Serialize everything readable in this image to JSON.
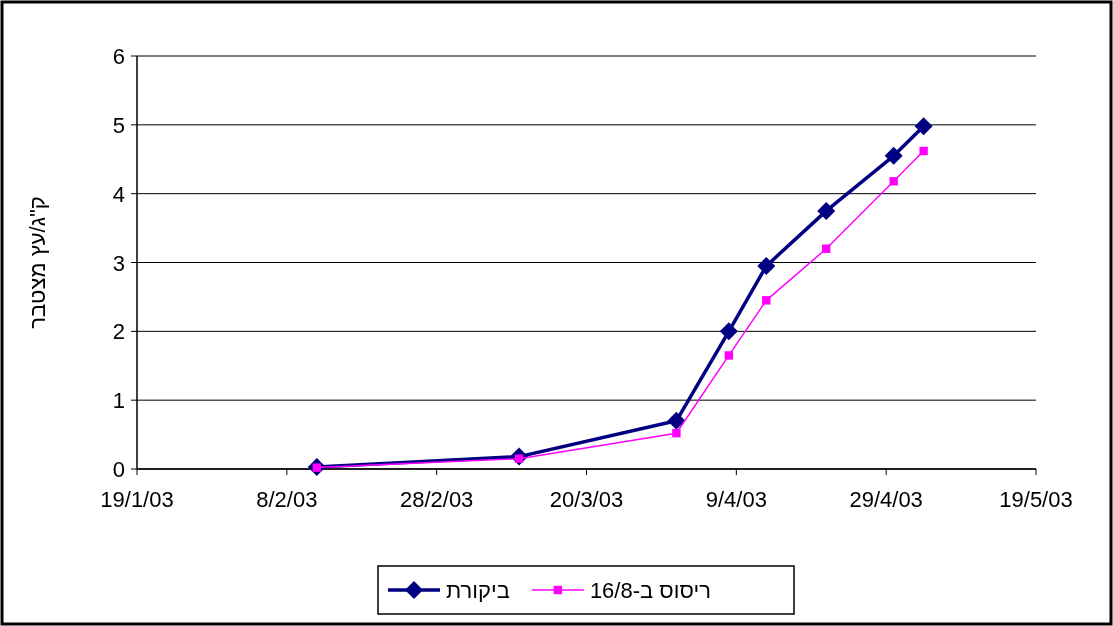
{
  "chart_data": {
    "type": "line",
    "ylabel": "ק\"ג/עץ מצטבר",
    "x": [
      "2003-02-12",
      "2003-03-11",
      "2003-04-01",
      "2003-04-08",
      "2003-04-13",
      "2003-04-21",
      "2003-04-30",
      "2003-05-04"
    ],
    "series": [
      {
        "name": "ביקורת",
        "color": "#000080",
        "marker": "diamond",
        "values": [
          0.03,
          0.18,
          0.7,
          2.0,
          2.95,
          3.75,
          4.55,
          4.98
        ]
      },
      {
        "name": "ריסוס ב-16/8",
        "color": "#ff00ff",
        "marker": "square",
        "values": [
          0.02,
          0.15,
          0.52,
          1.65,
          2.45,
          3.2,
          4.18,
          4.62
        ]
      }
    ],
    "xlim": [
      "2003-01-19",
      "2003-05-19"
    ],
    "xticks": [
      {
        "value": "2003-01-19",
        "label": "19/1/03"
      },
      {
        "value": "2003-02-08",
        "label": "8/2/03"
      },
      {
        "value": "2003-02-28",
        "label": "28/2/03"
      },
      {
        "value": "2003-03-20",
        "label": "20/3/03"
      },
      {
        "value": "2003-04-09",
        "label": "9/4/03"
      },
      {
        "value": "2003-04-29",
        "label": "29/4/03"
      },
      {
        "value": "2003-05-19",
        "label": "19/5/03"
      }
    ],
    "ylim": [
      0,
      6
    ],
    "yticks": [
      0,
      1,
      2,
      3,
      4,
      5,
      6
    ],
    "grid": "y",
    "legend": "bottom"
  }
}
